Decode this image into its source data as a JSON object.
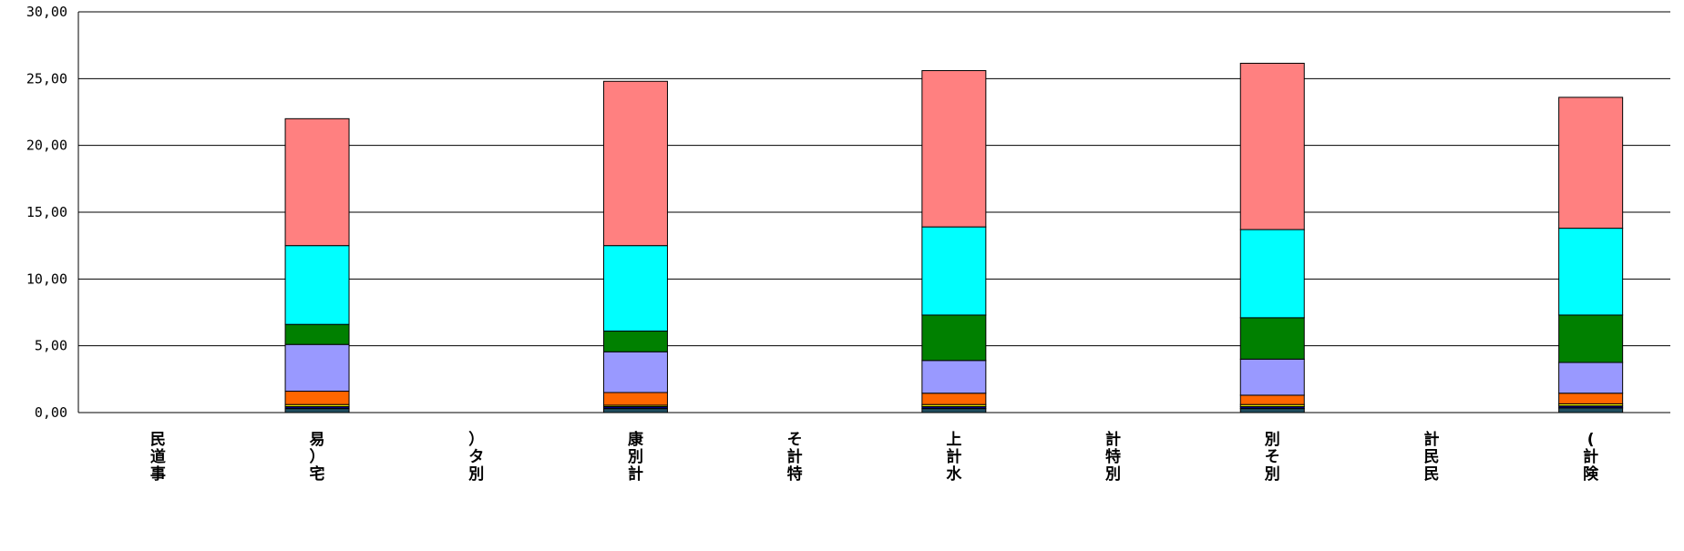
{
  "chart_data": {
    "type": "bar",
    "stacked": true,
    "title": "",
    "xlabel": "",
    "ylabel": "",
    "ylim": [
      0,
      30
    ],
    "yticks": [
      "0.00",
      "5.00",
      "10.00",
      "15.00",
      "20.00",
      "25.00",
      "30.00"
    ],
    "grid": true,
    "legend": "none",
    "categories": [
      "民道事",
      "易）宅",
      "）タ別",
      "康別計",
      "そ計特",
      "上計水",
      "計特別",
      "別そ別",
      "計民民",
      "(計険"
    ],
    "series": [
      {
        "color": "#1f4e5f",
        "values": [
          null,
          0.3,
          null,
          0.3,
          null,
          0.3,
          null,
          0.3,
          null,
          0.35
        ]
      },
      {
        "color": "#000080",
        "values": [
          null,
          0.15,
          null,
          0.15,
          null,
          0.15,
          null,
          0.15,
          null,
          0.15
        ]
      },
      {
        "color": "#ffff00",
        "values": [
          null,
          0.15,
          null,
          0.1,
          null,
          0.15,
          null,
          0.15,
          null,
          0.15
        ]
      },
      {
        "color": "#ff6600",
        "values": [
          null,
          1.0,
          null,
          0.95,
          null,
          0.85,
          null,
          0.7,
          null,
          0.8
        ]
      },
      {
        "color": "#9999ff",
        "values": [
          null,
          3.5,
          null,
          3.05,
          null,
          2.45,
          null,
          2.7,
          null,
          2.3
        ]
      },
      {
        "color": "#008000",
        "values": [
          null,
          1.5,
          null,
          1.55,
          null,
          3.4,
          null,
          3.1,
          null,
          3.55
        ]
      },
      {
        "color": "#00ffff",
        "values": [
          null,
          5.9,
          null,
          6.4,
          null,
          6.6,
          null,
          6.6,
          null,
          6.5
        ]
      },
      {
        "color": "#ff8080",
        "values": [
          null,
          9.5,
          null,
          12.3,
          null,
          11.7,
          null,
          12.45,
          null,
          9.8
        ]
      }
    ]
  }
}
